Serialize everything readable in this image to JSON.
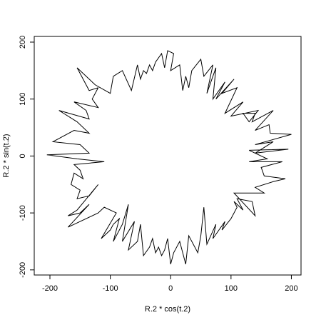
{
  "chart_data": {
    "type": "line",
    "xlabel": "R.2 * cos(t.2)",
    "ylabel": "R.2 * sin(t.2)",
    "color": "#000000",
    "x": [
      130,
      195,
      140,
      170,
      140,
      200,
      165,
      163,
      140,
      170,
      135,
      140,
      120,
      130,
      145,
      100,
      120,
      90,
      110,
      85,
      105,
      75,
      90,
      70,
      75,
      60,
      70,
      55,
      50,
      35,
      30,
      25,
      20,
      15,
      0,
      5,
      -5,
      -10,
      -15,
      -25,
      -30,
      -35,
      -40,
      -45,
      -50,
      -55,
      -65,
      -80,
      -95,
      -100,
      -125,
      -155,
      -135,
      -120,
      -130,
      -120,
      -160,
      -140,
      -135,
      -185,
      -155,
      -135,
      -160,
      -195,
      -150,
      -135,
      -205,
      -155,
      -110,
      -160,
      -150,
      -145,
      -160,
      -165,
      -150,
      -155,
      -135,
      -120,
      -155,
      -170,
      -150,
      -135,
      -170,
      -120,
      -110,
      -90,
      -115,
      -100,
      -95,
      -85,
      -95,
      -80,
      -70,
      -80,
      -60,
      -70,
      -55,
      -50,
      -45,
      -35,
      -30,
      -25,
      -20,
      -15,
      -10,
      -5,
      0,
      5,
      10,
      15,
      25,
      30,
      45,
      50,
      55,
      60,
      75,
      70,
      90,
      85,
      100,
      110,
      105,
      120,
      110,
      135,
      140,
      105,
      155,
      140,
      170,
      190,
      155,
      150,
      185,
      130,
      160,
      130
    ],
    "y": [
      10,
      12,
      5,
      25,
      20,
      38,
      40,
      55,
      45,
      80,
      60,
      75,
      75,
      60,
      80,
      70,
      95,
      75,
      120,
      110,
      135,
      100,
      130,
      100,
      155,
      110,
      160,
      140,
      170,
      150,
      120,
      140,
      115,
      160,
      150,
      180,
      185,
      155,
      180,
      165,
      150,
      160,
      145,
      150,
      135,
      160,
      115,
      150,
      140,
      110,
      125,
      155,
      115,
      120,
      100,
      85,
      95,
      80,
      65,
      80,
      60,
      40,
      45,
      25,
      20,
      5,
      2,
      -5,
      -10,
      -15,
      -25,
      -40,
      -30,
      -50,
      -60,
      -75,
      -70,
      -50,
      -95,
      -105,
      -100,
      -85,
      -125,
      -100,
      -90,
      -100,
      -145,
      -130,
      -120,
      -110,
      -150,
      -120,
      -85,
      -150,
      -115,
      -165,
      -150,
      -120,
      -175,
      -160,
      -145,
      -170,
      -160,
      -175,
      -165,
      -145,
      -190,
      -170,
      -160,
      -150,
      -190,
      -140,
      -170,
      -140,
      -90,
      -155,
      -120,
      -145,
      -115,
      -130,
      -110,
      -90,
      -80,
      -95,
      -75,
      -80,
      -105,
      -65,
      -65,
      -55,
      -45,
      -40,
      -35,
      -20,
      -10,
      -10,
      -5,
      10
    ],
    "xlim": [
      -226,
      216
    ],
    "ylim": [
      -209,
      210
    ],
    "xticks": [
      -200,
      -100,
      0,
      100,
      200
    ],
    "yticks": [
      -200,
      -100,
      0,
      100,
      200
    ]
  }
}
